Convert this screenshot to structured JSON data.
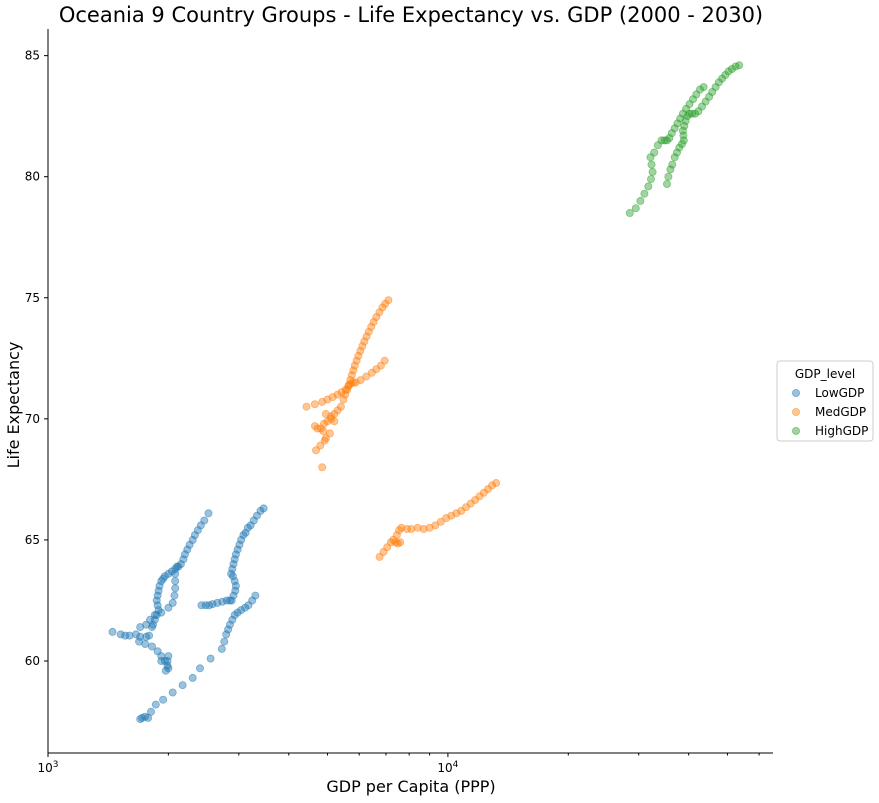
{
  "chart_data": {
    "type": "scatter",
    "title": "Oceania 9 Country Groups - Life Expectancy vs. GDP (2000 - 2030)",
    "xlabel": "GDP per Capita (PPP)",
    "ylabel": "Life Expectancy",
    "xscale": "log",
    "xlim": [
      1000,
      65000
    ],
    "ylim": [
      56.2,
      86.1
    ],
    "xticks": [
      {
        "value": 1000,
        "label": "10^3"
      },
      {
        "value": 10000,
        "label": "10^4"
      }
    ],
    "yticks": [
      60,
      65,
      70,
      75,
      80,
      85
    ],
    "grid": false,
    "legend": {
      "title": "GDP_level",
      "placement": "right"
    },
    "series": [
      {
        "name": "LowGDP",
        "color": "#1f77b4",
        "groups": [
          [
            [
              1700,
              57.6
            ],
            [
              1720,
              57.65
            ],
            [
              1750,
              57.7
            ],
            [
              1780,
              57.65
            ],
            [
              1810,
              57.9
            ],
            [
              1860,
              58.2
            ],
            [
              1940,
              58.4
            ],
            [
              2050,
              58.7
            ],
            [
              2170,
              59.0
            ],
            [
              2300,
              59.3
            ],
            [
              2400,
              59.7
            ],
            [
              2550,
              60.1
            ],
            [
              2720,
              60.5
            ],
            [
              2760,
              60.8
            ],
            [
              2790,
              61.1
            ],
            [
              2820,
              61.3
            ],
            [
              2850,
              61.5
            ],
            [
              2890,
              61.7
            ],
            [
              2930,
              61.9
            ],
            [
              2980,
              62.0
            ],
            [
              3040,
              62.1
            ],
            [
              3110,
              62.2
            ],
            [
              3170,
              62.3
            ],
            [
              3240,
              62.5
            ],
            [
              3300,
              62.7
            ]
          ],
          [
            [
              2420,
              62.3
            ],
            [
              2480,
              62.3
            ],
            [
              2530,
              62.3
            ],
            [
              2580,
              62.35
            ],
            [
              2650,
              62.4
            ],
            [
              2730,
              62.45
            ],
            [
              2800,
              62.5
            ],
            [
              2850,
              62.5
            ],
            [
              2880,
              62.5
            ],
            [
              2910,
              62.7
            ],
            [
              2940,
              62.9
            ],
            [
              2950,
              63.1
            ],
            [
              2930,
              63.3
            ],
            [
              2900,
              63.5
            ],
            [
              2870,
              63.6
            ],
            [
              2890,
              63.8
            ],
            [
              2910,
              64.0
            ],
            [
              2930,
              64.2
            ],
            [
              2950,
              64.4
            ],
            [
              2980,
              64.6
            ],
            [
              3010,
              64.8
            ],
            [
              3040,
              65.0
            ],
            [
              3080,
              65.2
            ],
            [
              3120,
              65.3
            ],
            [
              3160,
              65.5
            ],
            [
              3210,
              65.6
            ],
            [
              3270,
              65.8
            ],
            [
              3330,
              66.0
            ],
            [
              3400,
              66.2
            ],
            [
              3460,
              66.3
            ]
          ],
          [
            [
              1450,
              61.2
            ],
            [
              1520,
              61.1
            ],
            [
              1560,
              61.05
            ],
            [
              1600,
              61.05
            ],
            [
              1660,
              61.1
            ],
            [
              1700,
              61.0
            ],
            [
              1760,
              61.0
            ],
            [
              1790,
              61.05
            ],
            [
              1820,
              61.4
            ],
            [
              1830,
              61.5
            ],
            [
              1850,
              61.7
            ],
            [
              1870,
              61.9
            ],
            [
              1890,
              62.1
            ],
            [
              1880,
              62.3
            ],
            [
              1870,
              62.5
            ],
            [
              1880,
              62.7
            ],
            [
              1890,
              62.9
            ],
            [
              1900,
              63.1
            ],
            [
              1920,
              63.3
            ],
            [
              1940,
              63.4
            ],
            [
              1960,
              63.5
            ],
            [
              2000,
              63.6
            ],
            [
              2040,
              63.7
            ],
            [
              2080,
              63.8
            ],
            [
              2120,
              63.9
            ],
            [
              2150,
              64.0
            ],
            [
              2180,
              64.2
            ],
            [
              2200,
              64.4
            ],
            [
              2230,
              64.6
            ],
            [
              2260,
              64.8
            ],
            [
              2300,
              65.0
            ],
            [
              2330,
              65.2
            ],
            [
              2370,
              65.4
            ],
            [
              2410,
              65.6
            ],
            [
              2460,
              65.8
            ],
            [
              2520,
              66.1
            ]
          ],
          [
            [
              1700,
              61.4
            ],
            [
              1760,
              61.5
            ],
            [
              1800,
              61.7
            ],
            [
              1850,
              61.9
            ],
            [
              1920,
              62.0
            ],
            [
              2000,
              62.2
            ],
            [
              2050,
              62.4
            ],
            [
              2070,
              62.7
            ],
            [
              2080,
              63.0
            ],
            [
              2080,
              63.3
            ],
            [
              2080,
              63.6
            ],
            [
              2100,
              63.9
            ]
          ],
          [
            [
              1690,
              60.8
            ],
            [
              1750,
              60.7
            ],
            [
              1820,
              60.6
            ],
            [
              1880,
              60.4
            ],
            [
              1920,
              60.2
            ],
            [
              1960,
              60.0
            ],
            [
              1990,
              59.8
            ],
            [
              1970,
              59.6
            ],
            [
              2000,
              59.7
            ],
            [
              1990,
              60.0
            ],
            [
              2000,
              60.2
            ],
            [
              1920,
              60.0
            ]
          ]
        ]
      },
      {
        "name": "MedGDP",
        "color": "#ff7f0e",
        "groups": [
          [
            [
              4430,
              70.5
            ],
            [
              4650,
              70.6
            ],
            [
              4850,
              70.7
            ],
            [
              5000,
              70.8
            ],
            [
              5150,
              70.9
            ],
            [
              5300,
              71.0
            ],
            [
              5420,
              71.1
            ],
            [
              5550,
              71.2
            ],
            [
              5640,
              71.35
            ],
            [
              5720,
              71.45
            ],
            [
              5800,
              71.5
            ],
            [
              5880,
              71.5
            ],
            [
              6050,
              71.6
            ],
            [
              6250,
              71.75
            ],
            [
              6450,
              71.9
            ],
            [
              6620,
              72.05
            ],
            [
              6800,
              72.2
            ],
            [
              6950,
              72.4
            ]
          ],
          [
            [
              4680,
              68.7
            ],
            [
              4800,
              68.9
            ],
            [
              4920,
              69.1
            ],
            [
              4950,
              69.2
            ],
            [
              4880,
              69.5
            ],
            [
              4810,
              69.6
            ],
            [
              4720,
              69.6
            ],
            [
              4650,
              69.7
            ],
            [
              4900,
              69.8
            ],
            [
              5000,
              69.9
            ],
            [
              5100,
              70.1
            ],
            [
              5200,
              70.2
            ],
            [
              5300,
              70.35
            ],
            [
              5400,
              70.5
            ],
            [
              5480,
              70.8
            ],
            [
              5540,
              71.0
            ],
            [
              5600,
              71.2
            ],
            [
              5650,
              71.4
            ],
            [
              5700,
              71.6
            ],
            [
              5750,
              71.8
            ],
            [
              5800,
              72.0
            ],
            [
              5850,
              72.2
            ],
            [
              5910,
              72.4
            ],
            [
              5970,
              72.6
            ],
            [
              6040,
              72.8
            ],
            [
              6110,
              73.0
            ],
            [
              6180,
              73.2
            ],
            [
              6260,
              73.4
            ],
            [
              6340,
              73.6
            ],
            [
              6430,
              73.8
            ],
            [
              6520,
              74.0
            ],
            [
              6620,
              74.2
            ],
            [
              6740,
              74.4
            ],
            [
              6860,
              74.6
            ],
            [
              6970,
              74.75
            ],
            [
              7100,
              74.9
            ]
          ],
          [
            [
              4850,
              68.0
            ],
            [
              5070,
              69.4
            ],
            [
              5200,
              69.9
            ],
            [
              5100,
              70.0
            ],
            [
              4950,
              70.2
            ]
          ],
          [
            [
              6750,
              64.3
            ],
            [
              6900,
              64.5
            ],
            [
              7050,
              64.7
            ],
            [
              7200,
              64.9
            ],
            [
              7300,
              65.0
            ],
            [
              7400,
              64.9
            ],
            [
              7500,
              64.85
            ],
            [
              7600,
              64.9
            ],
            [
              7450,
              65.2
            ],
            [
              7550,
              65.4
            ],
            [
              7650,
              65.5
            ],
            [
              7900,
              65.45
            ],
            [
              8100,
              65.45
            ],
            [
              8400,
              65.5
            ],
            [
              8700,
              65.45
            ],
            [
              9000,
              65.5
            ],
            [
              9300,
              65.6
            ],
            [
              9600,
              65.75
            ],
            [
              9900,
              65.9
            ],
            [
              10200,
              66.0
            ],
            [
              10500,
              66.1
            ],
            [
              10800,
              66.2
            ],
            [
              11100,
              66.35
            ],
            [
              11400,
              66.5
            ],
            [
              11700,
              66.65
            ],
            [
              12000,
              66.8
            ],
            [
              12300,
              66.95
            ],
            [
              12600,
              67.1
            ],
            [
              12900,
              67.25
            ],
            [
              13200,
              67.35
            ]
          ]
        ]
      },
      {
        "name": "HighGDP",
        "color": "#2ca02c",
        "groups": [
          [
            [
              28500,
              78.5
            ],
            [
              29500,
              78.7
            ],
            [
              30300,
              79.0
            ],
            [
              31000,
              79.3
            ],
            [
              31700,
              79.6
            ],
            [
              32200,
              79.9
            ],
            [
              32500,
              80.2
            ],
            [
              32300,
              80.5
            ],
            [
              32100,
              80.8
            ],
            [
              32800,
              81.0
            ],
            [
              33500,
              81.3
            ],
            [
              34200,
              81.5
            ],
            [
              34800,
              81.5
            ],
            [
              35300,
              81.5
            ],
            [
              35800,
              81.6
            ],
            [
              36300,
              81.8
            ],
            [
              36900,
              82.0
            ],
            [
              37500,
              82.2
            ],
            [
              38100,
              82.4
            ],
            [
              38700,
              82.6
            ],
            [
              39400,
              82.8
            ],
            [
              40200,
              83.0
            ],
            [
              41000,
              83.2
            ],
            [
              41800,
              83.4
            ],
            [
              42700,
              83.6
            ],
            [
              43600,
              83.7
            ]
          ],
          [
            [
              35300,
              79.7
            ],
            [
              35600,
              80.0
            ],
            [
              36000,
              80.3
            ],
            [
              36400,
              80.5
            ],
            [
              36900,
              80.8
            ],
            [
              37400,
              81.0
            ],
            [
              37900,
              81.2
            ],
            [
              38500,
              81.35
            ],
            [
              38900,
              81.5
            ],
            [
              38800,
              81.7
            ],
            [
              38700,
              81.9
            ],
            [
              39000,
              82.1
            ],
            [
              39300,
              82.3
            ],
            [
              39700,
              82.5
            ],
            [
              40200,
              82.6
            ],
            [
              40800,
              82.6
            ],
            [
              41500,
              82.6
            ],
            [
              42300,
              82.7
            ],
            [
              43200,
              82.9
            ],
            [
              44100,
              83.1
            ],
            [
              45000,
              83.3
            ],
            [
              45800,
              83.5
            ],
            [
              46700,
              83.7
            ],
            [
              47600,
              83.9
            ],
            [
              48500,
              84.05
            ],
            [
              49400,
              84.2
            ],
            [
              50300,
              84.35
            ],
            [
              51300,
              84.45
            ],
            [
              52400,
              84.55
            ],
            [
              53500,
              84.6
            ]
          ]
        ]
      }
    ]
  }
}
